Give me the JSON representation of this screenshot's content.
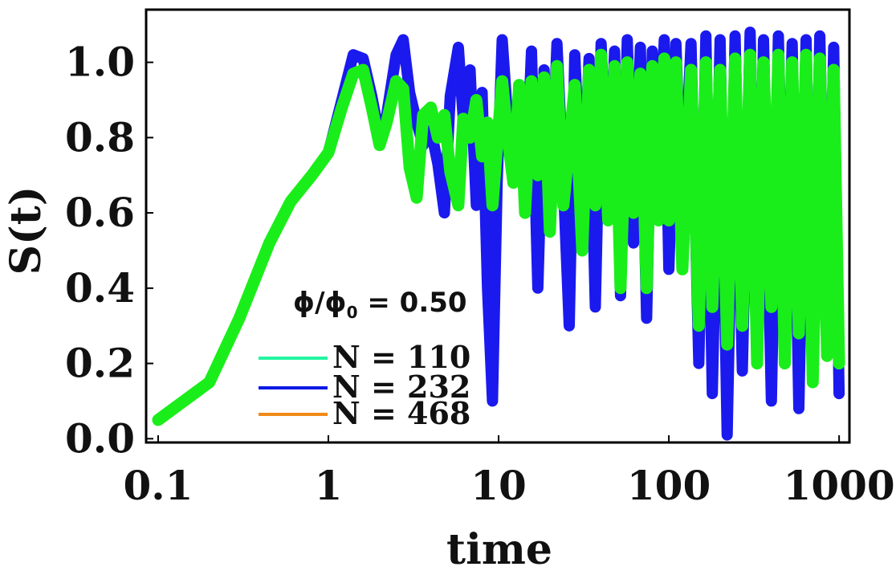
{
  "chart_data": {
    "type": "line",
    "title": "",
    "xlabel": "time",
    "ylabel": "S(t)",
    "xscale": "log",
    "xlim": [
      0.085,
      1150
    ],
    "ylim": [
      -0.01,
      1.14
    ],
    "xticks": [
      {
        "value": 0.1,
        "label": "0.1"
      },
      {
        "value": 1,
        "label": "1"
      },
      {
        "value": 10,
        "label": "10"
      },
      {
        "value": 100,
        "label": "100"
      },
      {
        "value": 1000,
        "label": "1000"
      }
    ],
    "yticks": [
      {
        "value": 0.0,
        "label": "0.0"
      },
      {
        "value": 0.2,
        "label": "0.2"
      },
      {
        "value": 0.4,
        "label": "0.4"
      },
      {
        "value": 0.6,
        "label": "0.6"
      },
      {
        "value": 0.8,
        "label": "0.8"
      },
      {
        "value": 1.0,
        "label": "1.0"
      }
    ],
    "annotation": {
      "main": "ϕ/ϕ",
      "sub": "0",
      "rest": " = 0.50"
    },
    "legend_position": "lower-left",
    "legend": [
      {
        "label": "N = 110",
        "color": "#22f5a0"
      },
      {
        "label": "N = 232",
        "color": "#0a1ae6"
      },
      {
        "label": "N = 468",
        "color": "#f08a18"
      }
    ],
    "series": [
      {
        "name": "N = 232",
        "color": "#1a1aee",
        "x": [
          0.1,
          0.2,
          0.3,
          0.45,
          0.6,
          0.8,
          1.0,
          1.2,
          1.4,
          1.6,
          1.8,
          2.0,
          2.2,
          2.5,
          2.75,
          3.0,
          3.3,
          3.6,
          4.0,
          4.4,
          4.8,
          5.2,
          5.8,
          6.2,
          6.8,
          7.4,
          8.0,
          8.6,
          9.2,
          9.8,
          10.5,
          11.3,
          12.2,
          13.2,
          14.3,
          15.6,
          17,
          18.5,
          20,
          22,
          24,
          26,
          28,
          31,
          34,
          37,
          40,
          44,
          48,
          52,
          57,
          62,
          68,
          74,
          80,
          87,
          94,
          100,
          110,
          120,
          135,
          150,
          165,
          180,
          200,
          220,
          245,
          270,
          300,
          330,
          360,
          400,
          440,
          480,
          530,
          580,
          640,
          700,
          770,
          850,
          930,
          1000
        ],
        "values": [
          0.05,
          0.15,
          0.32,
          0.52,
          0.63,
          0.7,
          0.76,
          0.9,
          1.02,
          1.01,
          0.91,
          0.8,
          0.86,
          1.02,
          1.06,
          0.92,
          0.84,
          0.78,
          0.82,
          0.73,
          0.6,
          0.91,
          1.04,
          0.85,
          0.98,
          0.62,
          0.92,
          0.4,
          0.1,
          0.68,
          1.06,
          0.85,
          0.7,
          0.92,
          0.62,
          1.03,
          0.4,
          0.98,
          0.55,
          1.05,
          0.68,
          0.3,
          1.02,
          0.58,
          1.01,
          0.35,
          1.05,
          0.62,
          1.03,
          0.38,
          1.06,
          0.52,
          1.04,
          0.32,
          1.03,
          0.72,
          1.06,
          0.45,
          1.05,
          0.55,
          1.05,
          0.2,
          1.07,
          0.12,
          1.06,
          0.01,
          1.07,
          0.18,
          1.08,
          0.24,
          1.06,
          0.1,
          1.07,
          0.3,
          1.05,
          0.08,
          1.06,
          0.15,
          1.07,
          0.22,
          1.04,
          0.12
        ]
      },
      {
        "name": "N = 110",
        "color": "#1aee1a",
        "x": [
          0.1,
          0.2,
          0.3,
          0.45,
          0.6,
          0.8,
          1.0,
          1.2,
          1.4,
          1.6,
          1.8,
          2.0,
          2.2,
          2.5,
          2.75,
          3.0,
          3.3,
          3.6,
          4.0,
          4.4,
          4.8,
          5.2,
          5.8,
          6.2,
          6.8,
          7.4,
          8.0,
          8.6,
          9.2,
          9.8,
          10.5,
          11.3,
          12.2,
          13.2,
          14.3,
          15.6,
          17,
          18.5,
          20,
          22,
          24,
          26,
          28,
          31,
          34,
          37,
          40,
          44,
          48,
          52,
          57,
          62,
          68,
          74,
          80,
          87,
          94,
          100,
          110,
          120,
          135,
          150,
          165,
          180,
          200,
          220,
          245,
          270,
          300,
          330,
          360,
          400,
          440,
          480,
          530,
          580,
          640,
          700,
          770,
          850,
          930,
          1000
        ],
        "values": [
          0.05,
          0.15,
          0.32,
          0.52,
          0.63,
          0.7,
          0.76,
          0.88,
          0.97,
          0.98,
          0.88,
          0.78,
          0.84,
          0.95,
          0.93,
          0.72,
          0.64,
          0.86,
          0.88,
          0.8,
          0.86,
          0.71,
          0.62,
          0.85,
          0.8,
          0.9,
          0.75,
          0.84,
          0.62,
          0.78,
          0.95,
          0.8,
          0.68,
          0.94,
          0.6,
          0.95,
          0.7,
          0.96,
          0.55,
          0.99,
          0.62,
          0.78,
          0.94,
          0.5,
          0.98,
          0.62,
          1.02,
          0.58,
          0.99,
          0.4,
          1.0,
          0.6,
          0.97,
          0.4,
          0.99,
          0.58,
          1.01,
          0.58,
          1.0,
          0.45,
          0.98,
          0.3,
          1.0,
          0.35,
          0.98,
          0.25,
          1.01,
          0.3,
          1.02,
          0.2,
          1.0,
          0.35,
          1.02,
          0.2,
          1.0,
          0.28,
          1.02,
          0.15,
          1.01,
          0.22,
          0.98,
          0.2
        ]
      }
    ]
  }
}
